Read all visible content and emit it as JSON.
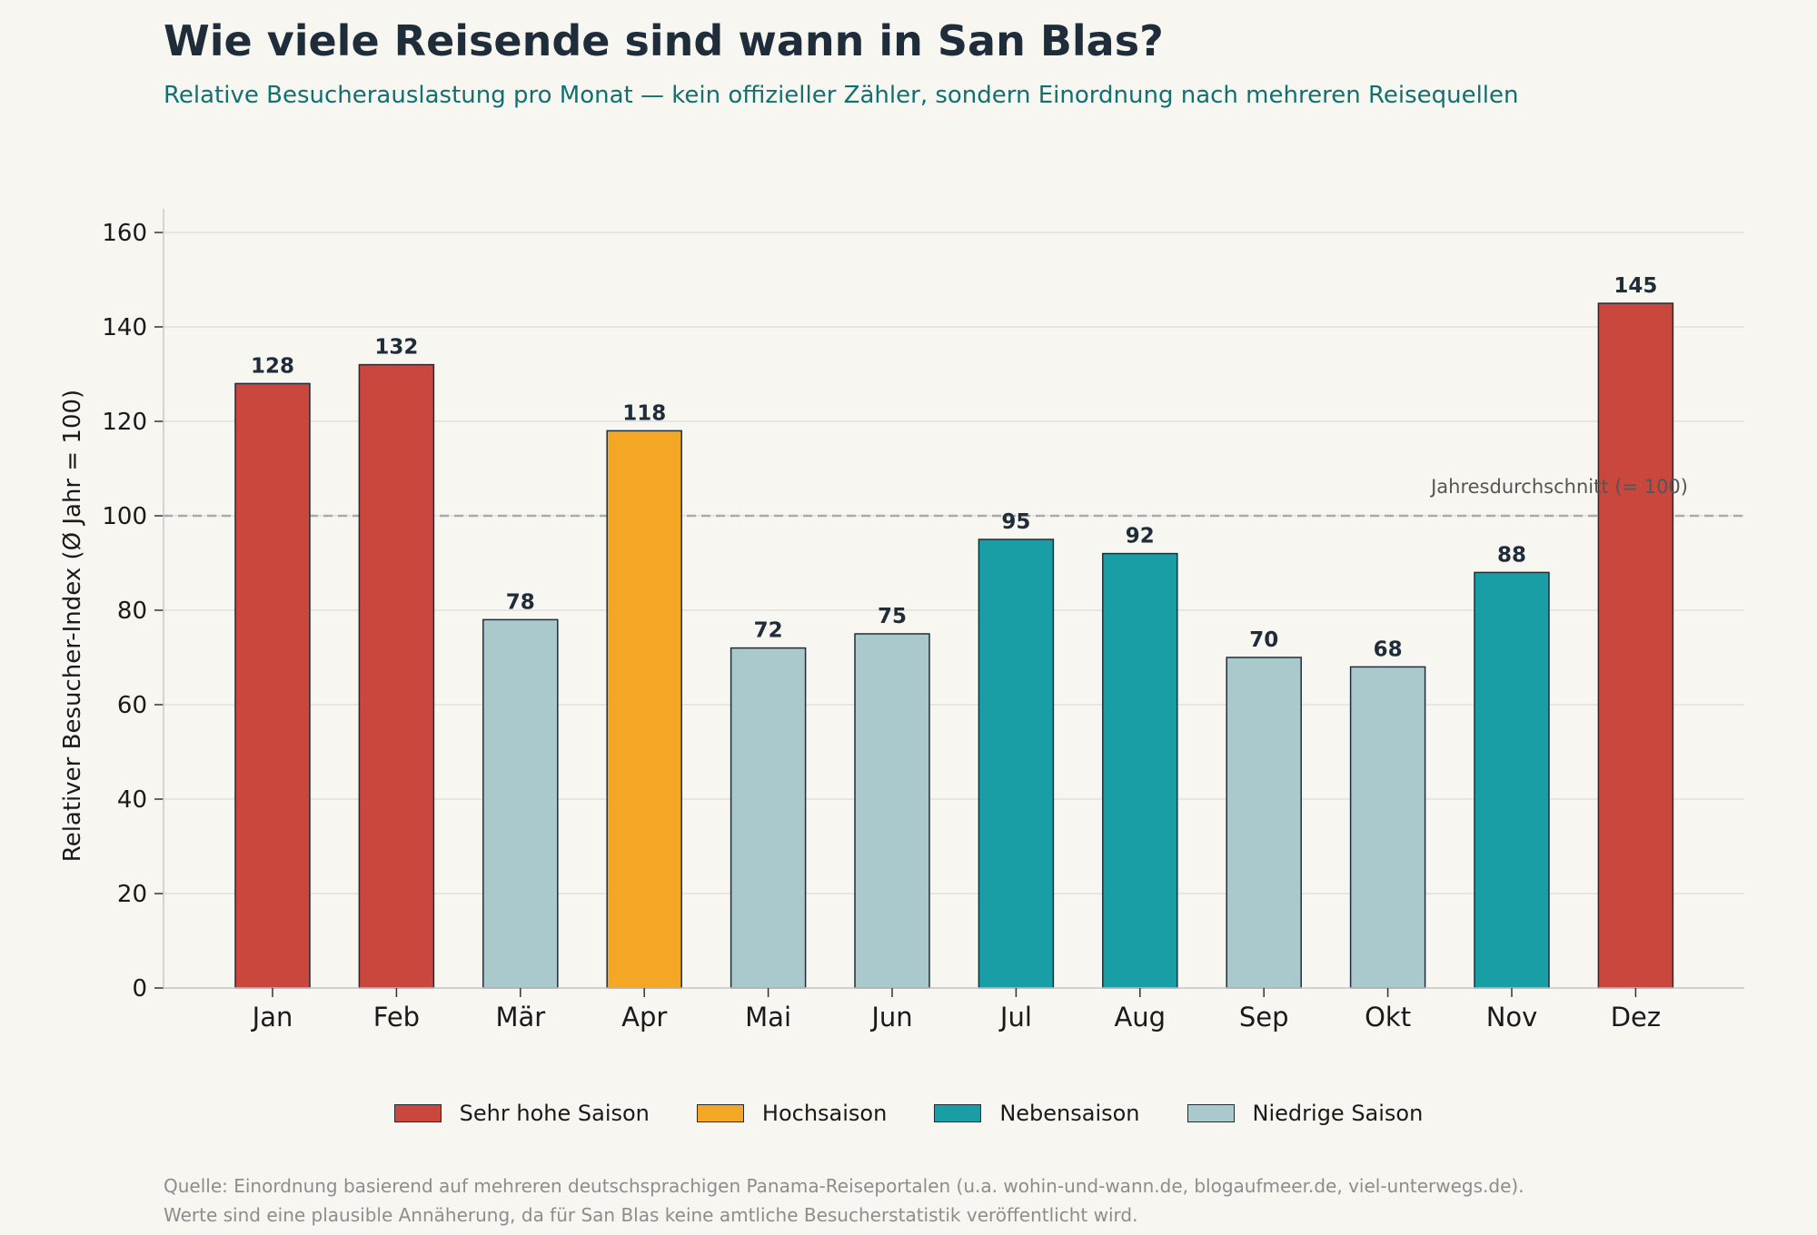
{
  "title": "Wie viele Reisende sind wann in San Blas?",
  "subtitle": "Relative Besucherauslastung pro Monat — kein offizieller Zähler, sondern Einordnung nach mehreren Reisequellen",
  "footer": {
    "line1": "Quelle: Einordnung basierend auf mehreren deutschsprachigen Panama-Reiseportalen (u.a. wohin-und-wann.de, blogaufmeer.de, viel-unterwegs.de).",
    "line2": "Werte sind eine plausible Annäherung, da für San Blas keine amtliche Besucherstatistik veröffentlicht wird."
  },
  "colors": {
    "background": "#f7f6f1",
    "sehr_hohe_saison": "#c9473d",
    "hochsaison": "#f4a725",
    "nebensaison": "#1a9ea6",
    "niedrige_saison": "#aac9cc"
  },
  "legend": [
    {
      "label": "Sehr hohe Saison",
      "color": "#c9473d"
    },
    {
      "label": "Hochsaison",
      "color": "#f4a725"
    },
    {
      "label": "Nebensaison",
      "color": "#1a9ea6"
    },
    {
      "label": "Niedrige Saison",
      "color": "#aac9cc"
    }
  ],
  "chart_data": {
    "type": "bar",
    "title": "Wie viele Reisende sind wann in San Blas?",
    "subtitle": "Relative Besucherauslastung pro Monat — kein offizieller Zähler, sondern Einordnung nach mehreren Reisequellen",
    "xlabel": "",
    "ylabel": "Relativer Besucher-Index (Ø Jahr = 100)",
    "ylim": [
      0,
      165
    ],
    "yticks": [
      0,
      20,
      40,
      60,
      80,
      100,
      120,
      140,
      160
    ],
    "grid": "horizontal",
    "legend_position": "bottom-center",
    "categories": [
      "Jan",
      "Feb",
      "Mär",
      "Apr",
      "Mai",
      "Jun",
      "Jul",
      "Aug",
      "Sep",
      "Okt",
      "Nov",
      "Dez"
    ],
    "values": [
      128,
      132,
      78,
      118,
      72,
      75,
      95,
      92,
      70,
      68,
      88,
      145
    ],
    "season": [
      "Sehr hohe Saison",
      "Sehr hohe Saison",
      "Niedrige Saison",
      "Hochsaison",
      "Niedrige Saison",
      "Niedrige Saison",
      "Nebensaison",
      "Nebensaison",
      "Niedrige Saison",
      "Niedrige Saison",
      "Nebensaison",
      "Sehr hohe Saison"
    ],
    "reference_line": {
      "value": 100,
      "label": "Jahresdurchschnitt (= 100)",
      "style": "dashed"
    }
  }
}
